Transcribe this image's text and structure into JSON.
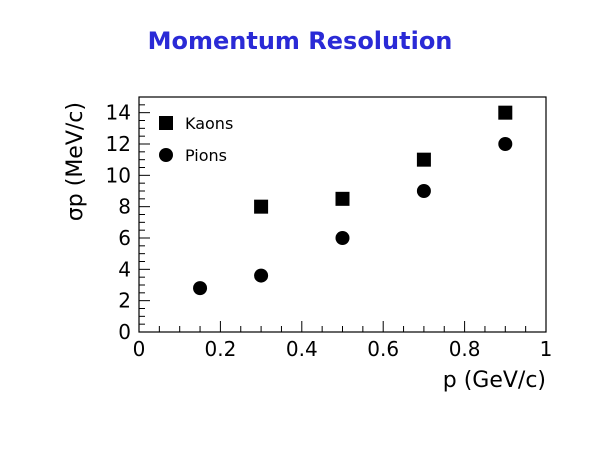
{
  "chart_data": {
    "type": "scatter",
    "title": "Momentum Resolution",
    "xlabel": "p (GeV/c)",
    "ylabel": "σp (MeV/c)",
    "xlim": [
      0,
      1
    ],
    "ylim": [
      0,
      15
    ],
    "x_ticks": [
      "0",
      "0.2",
      "0.4",
      "0.6",
      "0.8",
      "1"
    ],
    "y_ticks": [
      "0",
      "2",
      "4",
      "6",
      "8",
      "10",
      "12",
      "14"
    ],
    "grid": false,
    "legend_position": "top-left",
    "colors": {
      "title": "#2a2ad6",
      "markers": "#000000",
      "axes": "#000000"
    },
    "series": [
      {
        "name": "Kaons",
        "marker": "square",
        "x": [
          0.3,
          0.5,
          0.7,
          0.9
        ],
        "y": [
          8.0,
          8.5,
          11.0,
          14.0
        ]
      },
      {
        "name": "Pions",
        "marker": "circle",
        "x": [
          0.15,
          0.3,
          0.5,
          0.7,
          0.9
        ],
        "y": [
          2.8,
          3.6,
          6.0,
          9.0,
          12.0
        ]
      }
    ]
  }
}
